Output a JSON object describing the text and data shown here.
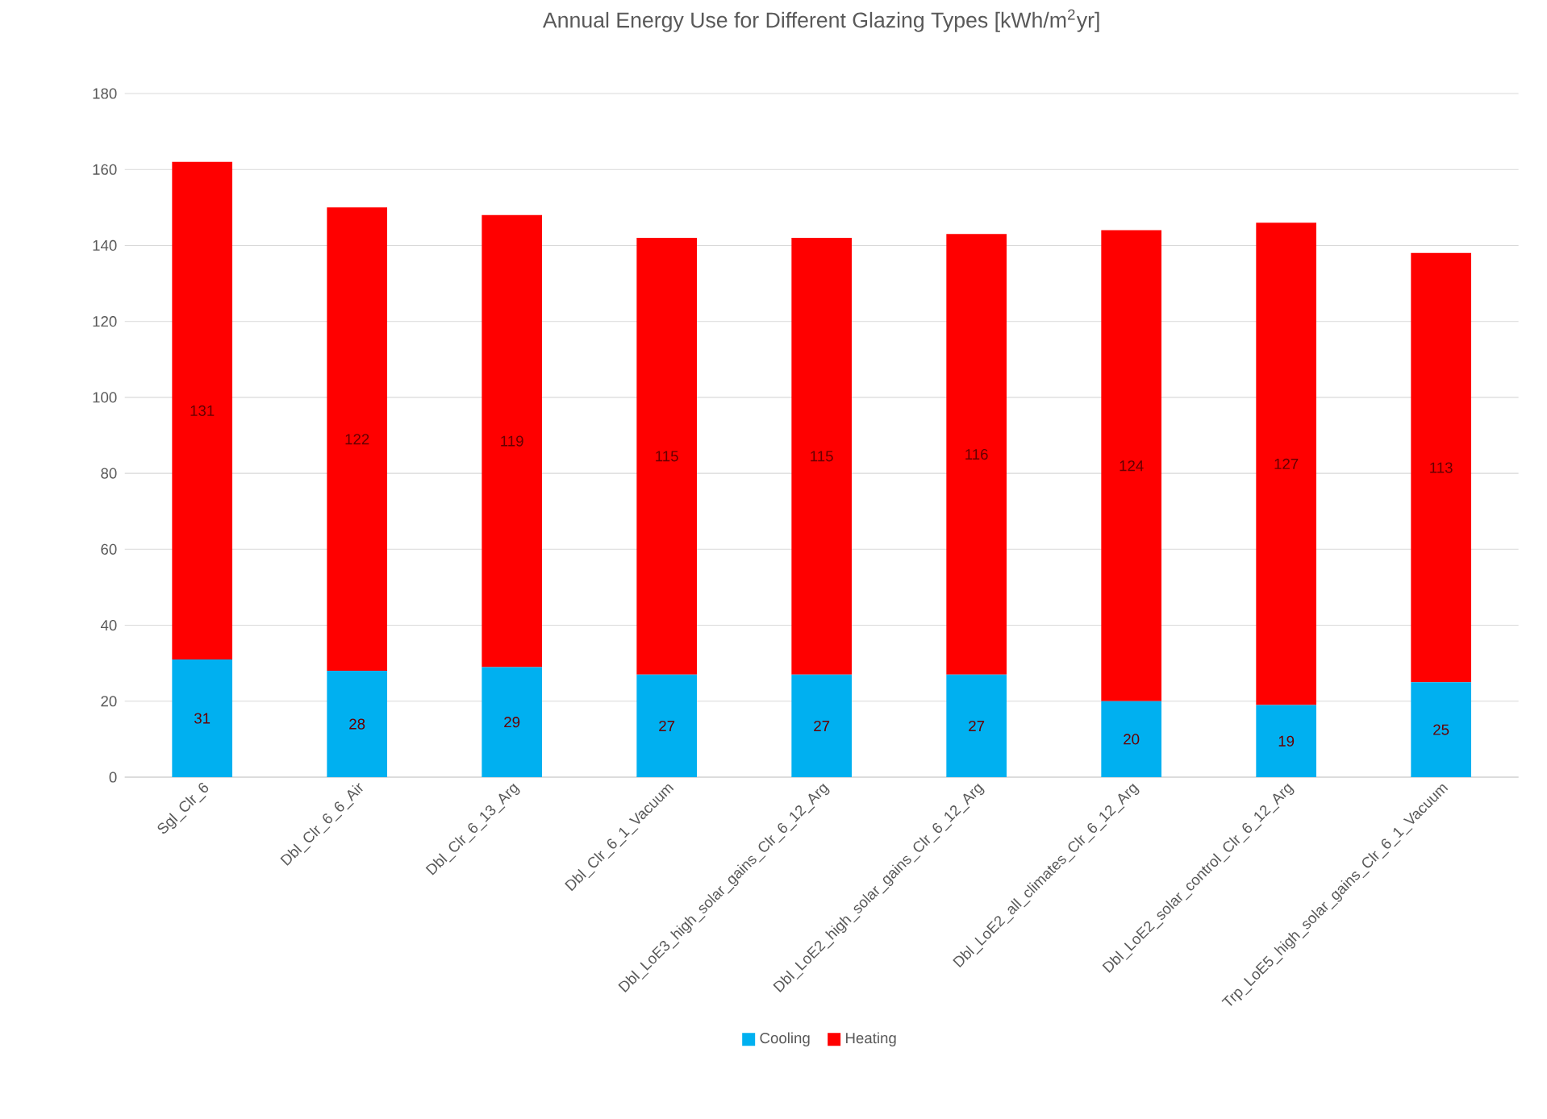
{
  "chart_data": {
    "type": "bar",
    "stacked": true,
    "title": "Annual Energy Use for Different Glazing Types [kWh/m$^{2}$yr]",
    "categories": [
      "Sgl_Clr_6",
      "Dbl_Clr_6_6_Air",
      "Dbl_Clr_6_13_Arg",
      "Dbl_Clr_6_1_Vacuum",
      "Dbl_LoE3_high_solar_gains_Clr_6_12_Arg",
      "Dbl_LoE2_high_solar_gains_Clr_6_12_Arg",
      "Dbl_LoE2_all_climates_Clr_6_12_Arg",
      "Dbl_LoE2_solar_control_Clr_6_12_Arg",
      "Trp_LoE5_high_solar_gains_Clr_6_1_Vacuum"
    ],
    "series": [
      {
        "name": "Cooling",
        "color": "#00b0f0",
        "values": [
          31,
          28,
          29,
          27,
          27,
          27,
          20,
          19,
          25
        ]
      },
      {
        "name": "Heating",
        "color": "#ff0000",
        "values": [
          131,
          122,
          119,
          115,
          115,
          116,
          124,
          127,
          113
        ]
      }
    ],
    "ylim": [
      0,
      180
    ],
    "yticks": [
      0,
      20,
      40,
      60,
      80,
      100,
      120,
      140,
      160,
      180
    ],
    "grid": "y",
    "legend": "bottom",
    "data_labels": true
  }
}
